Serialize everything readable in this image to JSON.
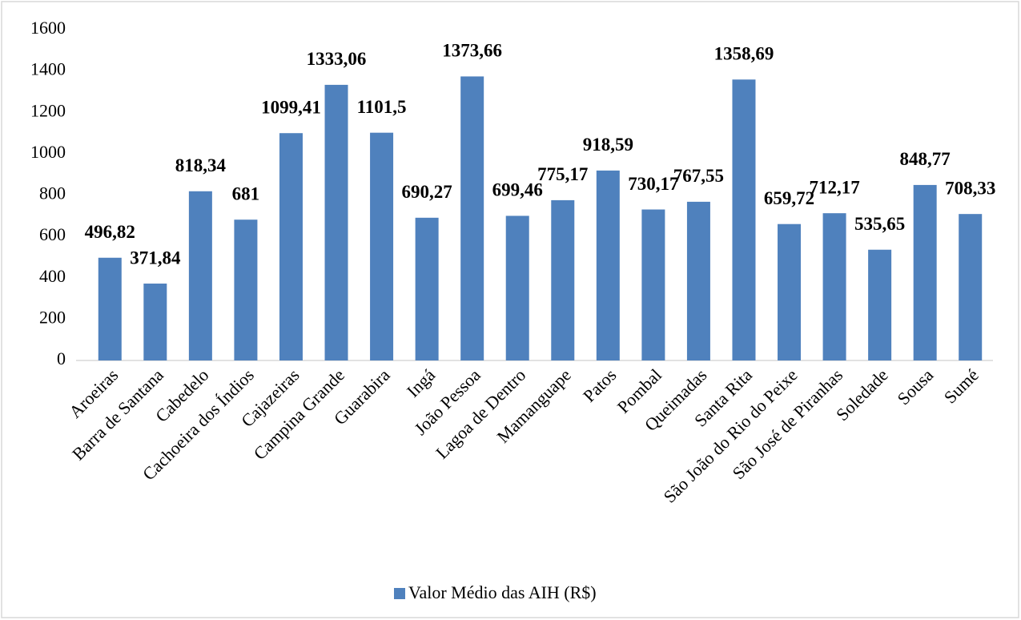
{
  "chart_data": {
    "type": "bar",
    "categories": [
      "Aroeiras",
      "Barra de Santana",
      "Cabedelo",
      "Cachoeira dos Índios",
      "Cajazeiras",
      "Campina Grande",
      "Guarabira",
      "Ingá",
      "João Pessoa",
      "Lagoa de Dentro",
      "Mamanguape",
      "Patos",
      "Pombal",
      "Queimadas",
      "Santa Rita",
      "São João do Rio do Peixe",
      "São José de Piranhas",
      "Soledade",
      "Sousa",
      "Sumé"
    ],
    "series": [
      {
        "name": "Valor Médio das AIH (R$)",
        "color": "#4f81bd",
        "values": [
          496.82,
          371.84,
          818.34,
          681,
          1099.41,
          1333.06,
          1101.5,
          690.27,
          1373.66,
          699.46,
          775.17,
          918.59,
          730.17,
          767.55,
          1358.69,
          659.72,
          712.17,
          535.65,
          848.77,
          708.33
        ],
        "value_labels": [
          "496,82",
          "371,84",
          "818,34",
          "681",
          "1099,41",
          "1333,06",
          "1101,5",
          "690,27",
          "1373,66",
          "699,46",
          "775,17",
          "918,59",
          "730,17",
          "767,55",
          "1358,69",
          "659,72",
          "712,17",
          "535,65",
          "848,77",
          "708,33"
        ]
      }
    ],
    "ylim": [
      0,
      1600
    ],
    "yticks": [
      0,
      200,
      400,
      600,
      800,
      1000,
      1200,
      1400,
      1600
    ],
    "grid": false,
    "legend": "bottom"
  }
}
